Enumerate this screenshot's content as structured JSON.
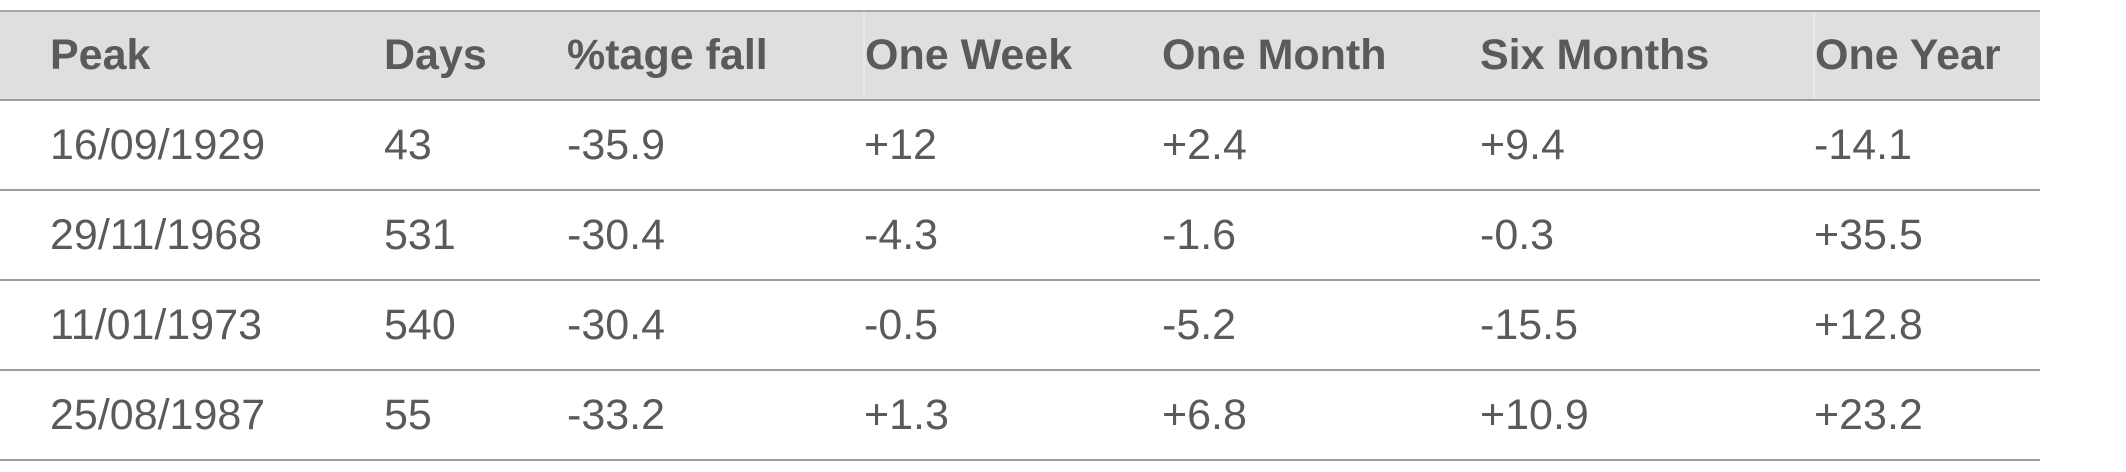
{
  "table": {
    "headers": [
      "Peak",
      "Days",
      "%tage fall",
      "One Week",
      "One Month",
      "Six Months",
      "One Year"
    ],
    "rows": [
      [
        "16/09/1929",
        "43",
        "-35.9",
        "+12",
        "+2.4",
        "+9.4",
        "-14.1"
      ],
      [
        "29/11/1968",
        "531",
        "-30.4",
        "-4.3",
        "-1.6",
        "-0.3",
        "+35.5"
      ],
      [
        "11/01/1973",
        "540",
        "-30.4",
        "-0.5",
        "-5.2",
        "-15.5",
        "+12.8"
      ],
      [
        "25/08/1987",
        "55",
        "-33.2",
        "+1.3",
        "+6.8",
        "+10.9",
        "+23.2"
      ]
    ]
  },
  "colors": {
    "header_background": "#dfdfe1",
    "text": "#5a5a5c",
    "rule": "#9d9d9f"
  }
}
